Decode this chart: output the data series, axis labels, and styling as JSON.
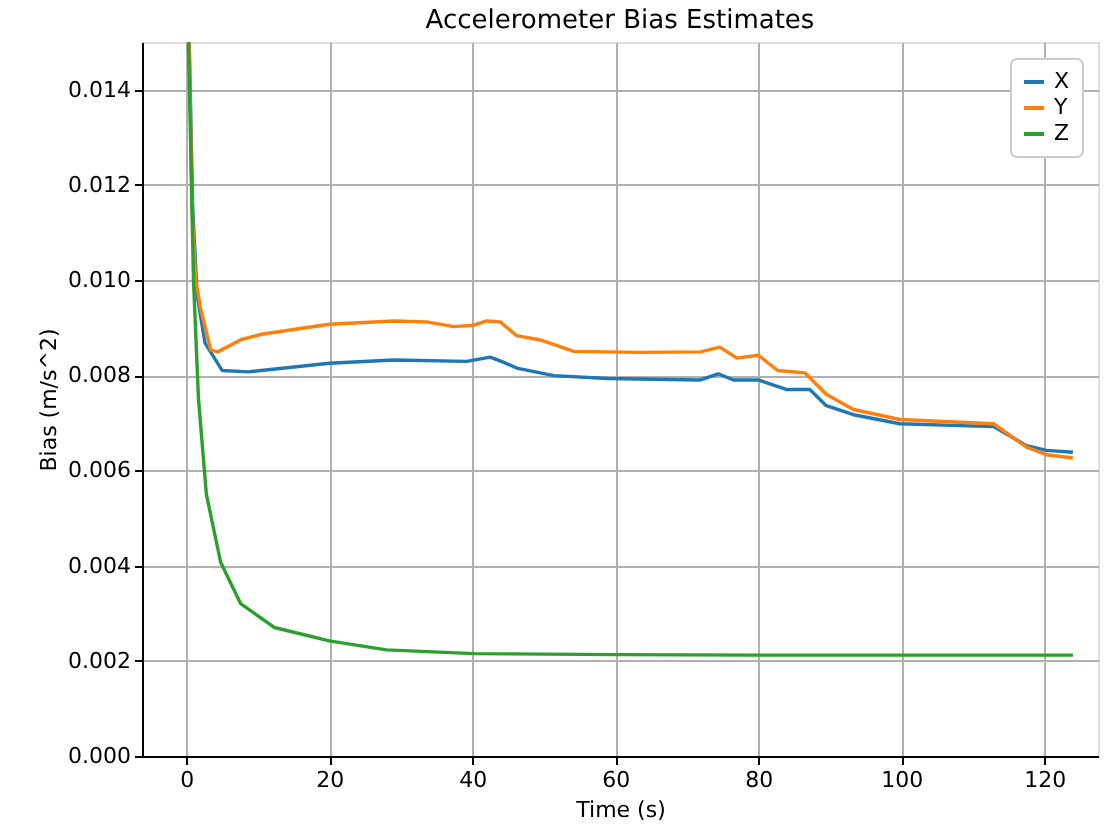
{
  "chart_data": {
    "type": "line",
    "title": "Accelerometer Bias Estimates",
    "xlabel": "Time (s)",
    "ylabel": "Bias (m/s^2)",
    "xlim": [
      -6.2,
      127.5
    ],
    "xticks": [
      0,
      20,
      40,
      60,
      80,
      100,
      120
    ],
    "ylim": [
      0,
      0.015
    ],
    "yticks": [
      {
        "value": 0,
        "label": "0.000"
      },
      {
        "value": 0.002,
        "label": "0.002"
      },
      {
        "value": 0.004,
        "label": "0.004"
      },
      {
        "value": 0.006,
        "label": "0.006"
      },
      {
        "value": 0.008,
        "label": "0.008"
      },
      {
        "value": 0.01,
        "label": "0.010"
      },
      {
        "value": 0.012,
        "label": "0.012"
      },
      {
        "value": 0.014,
        "label": "0.014"
      }
    ],
    "grid": true,
    "legend": "top right",
    "line_style": "solid",
    "marker": "none",
    "series": [
      {
        "name": "X",
        "color": "#1f77b4",
        "x": [
          0.4,
          0.9,
          1.5,
          2.6,
          5,
          8.7,
          20,
          29,
          39.2,
          42.5,
          44.4,
          46.2,
          51.4,
          58.9,
          71.9,
          74.4,
          76.5,
          80,
          83.9,
          87.2,
          89.5,
          93.3,
          99.8,
          112.9,
          117.5,
          120.3,
          124
        ],
        "values": [
          0.015,
          0.0115,
          0.0097,
          0.00868,
          0.0081,
          0.00807,
          0.00825,
          0.00832,
          0.00829,
          0.00838,
          0.00827,
          0.00815,
          0.00799,
          0.00793,
          0.0079,
          0.00803,
          0.0079,
          0.0079,
          0.0077,
          0.0077,
          0.00736,
          0.00717,
          0.00698,
          0.00692,
          0.00652,
          0.00642,
          0.00638
        ]
      },
      {
        "name": "Y",
        "color": "#ff7f0e",
        "x": [
          0.4,
          0.8,
          1.3,
          2.0,
          3.4,
          4.4,
          7.7,
          10.5,
          20,
          29,
          33.6,
          37.4,
          40.2,
          42,
          43.9,
          46.2,
          49.5,
          54.2,
          63.5,
          71.9,
          74.6,
          77,
          80,
          82.7,
          86.5,
          89.5,
          93.3,
          99.8,
          112.9,
          117.5,
          120.3,
          124
        ],
        "values": [
          0.015,
          0.0115,
          0.01,
          0.0094,
          0.00853,
          0.00849,
          0.00875,
          0.00886,
          0.00907,
          0.00914,
          0.00912,
          0.00902,
          0.00905,
          0.00914,
          0.00912,
          0.00883,
          0.00874,
          0.0085,
          0.00848,
          0.00849,
          0.00859,
          0.00836,
          0.00842,
          0.0081,
          0.00805,
          0.0076,
          0.00728,
          0.00707,
          0.00698,
          0.00649,
          0.00633,
          0.00626
        ]
      },
      {
        "name": "Z",
        "color": "#2ca02c",
        "x": [
          0.3,
          1.0,
          1.7,
          2.8,
          4.8,
          7.6,
          12.3,
          20,
          28,
          40.2,
          60,
          80,
          100,
          124
        ],
        "values": [
          0.015,
          0.01,
          0.0075,
          0.0055,
          0.00407,
          0.0032,
          0.0027,
          0.00242,
          0.00223,
          0.00215,
          0.00213,
          0.00212,
          0.00212,
          0.00212
        ]
      }
    ]
  }
}
